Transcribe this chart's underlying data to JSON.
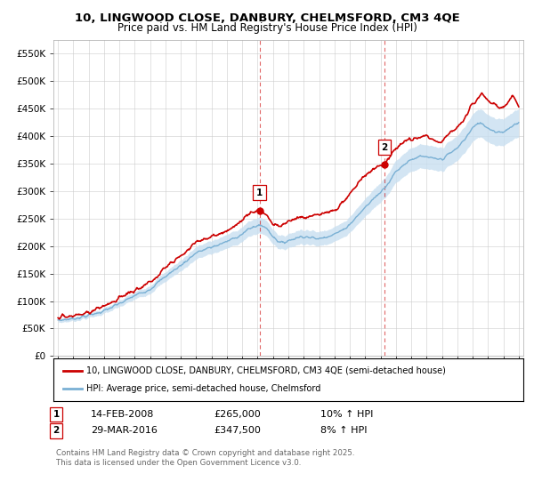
{
  "title_line1": "10, LINGWOOD CLOSE, DANBURY, CHELMSFORD, CM3 4QE",
  "title_line2": "Price paid vs. HM Land Registry's House Price Index (HPI)",
  "ylabel_ticks": [
    "£0",
    "£50K",
    "£100K",
    "£150K",
    "£200K",
    "£250K",
    "£300K",
    "£350K",
    "£400K",
    "£450K",
    "£500K",
    "£550K"
  ],
  "ytick_values": [
    0,
    50000,
    100000,
    150000,
    200000,
    250000,
    300000,
    350000,
    400000,
    450000,
    500000,
    550000
  ],
  "ylim": [
    0,
    575000
  ],
  "xlim_start": 1994.7,
  "xlim_end": 2025.3,
  "red_line_color": "#cc0000",
  "blue_line_color": "#7ab0d4",
  "blue_fill_color": "#c8dff0",
  "grid_color": "#cccccc",
  "marker1_x": 2008.12,
  "marker1_y": 265000,
  "marker2_x": 2016.25,
  "marker2_y": 347500,
  "vline1_x": 2008.12,
  "vline2_x": 2016.25,
  "legend_red_label": "10, LINGWOOD CLOSE, DANBURY, CHELMSFORD, CM3 4QE (semi-detached house)",
  "legend_blue_label": "HPI: Average price, semi-detached house, Chelmsford",
  "annotation1_date": "14-FEB-2008",
  "annotation1_price": "£265,000",
  "annotation1_hpi": "10% ↑ HPI",
  "annotation2_date": "29-MAR-2016",
  "annotation2_price": "£347,500",
  "annotation2_hpi": "8% ↑ HPI",
  "footnote": "Contains HM Land Registry data © Crown copyright and database right 2025.\nThis data is licensed under the Open Government Licence v3.0.",
  "background_color": "#ffffff"
}
